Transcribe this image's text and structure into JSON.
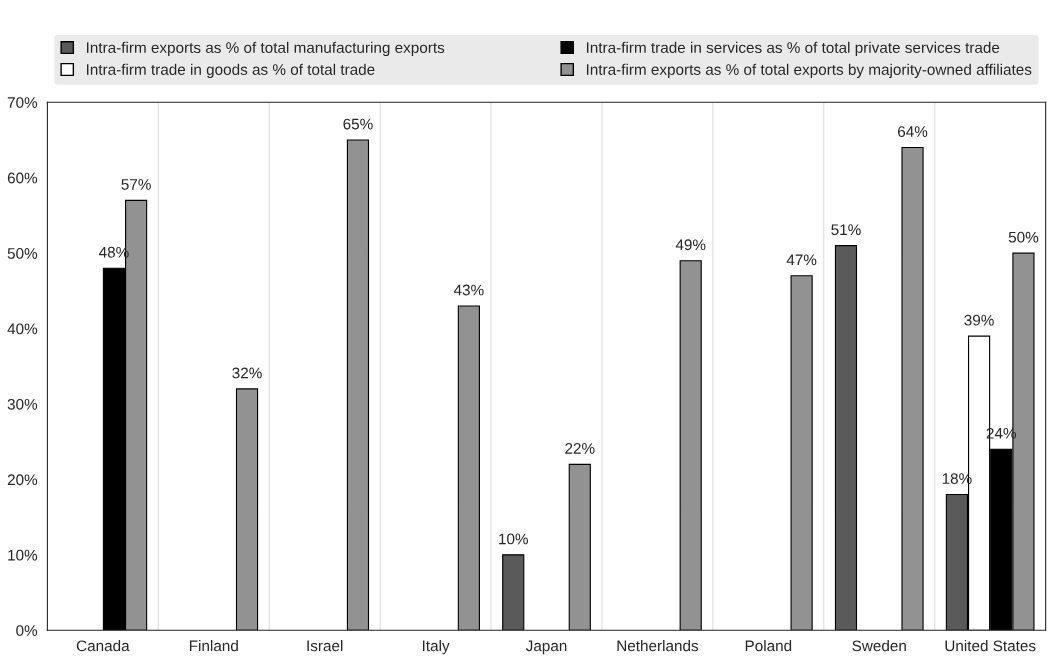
{
  "chart_data": {
    "type": "bar",
    "categories": [
      "Canada",
      "Finland",
      "Israel",
      "Italy",
      "Japan",
      "Netherlands",
      "Poland",
      "Sweden",
      "United States"
    ],
    "series": [
      {
        "name": "Intra-firm exports as % of total manufacturing exports",
        "color": "#5a5a5a",
        "values": [
          null,
          null,
          null,
          null,
          10,
          null,
          null,
          51,
          18
        ],
        "value_labels": [
          null,
          null,
          null,
          null,
          "10%",
          null,
          null,
          "51%",
          "18%"
        ]
      },
      {
        "name": "Intra-firm trade in goods as % of total trade",
        "color": "#ffffff",
        "values": [
          null,
          null,
          null,
          null,
          null,
          null,
          null,
          null,
          39
        ],
        "value_labels": [
          null,
          null,
          null,
          null,
          null,
          null,
          null,
          null,
          "39%"
        ]
      },
      {
        "name": "Intra-firm trade in services as % of total private services trade",
        "color": "#000000",
        "values": [
          48,
          null,
          null,
          null,
          null,
          null,
          null,
          null,
          24
        ],
        "value_labels": [
          "48%",
          null,
          null,
          null,
          null,
          null,
          null,
          null,
          "24%"
        ]
      },
      {
        "name": "Intra-firm exports as % of total exports by majority-owned affiliates",
        "color": "#929292",
        "values": [
          57,
          32,
          65,
          43,
          22,
          49,
          47,
          64,
          50
        ],
        "value_labels": [
          "57%",
          "32%",
          "65%",
          "43%",
          "22%",
          "49%",
          "47%",
          "64%",
          "50%"
        ]
      }
    ],
    "ylim": [
      0,
      70
    ],
    "yticks": [
      {
        "value": 0,
        "label": "0%"
      },
      {
        "value": 10,
        "label": "10%"
      },
      {
        "value": 20,
        "label": "20%"
      },
      {
        "value": 30,
        "label": "30%"
      },
      {
        "value": 40,
        "label": "40%"
      },
      {
        "value": 50,
        "label": "50%"
      },
      {
        "value": 60,
        "label": "60%"
      },
      {
        "value": 70,
        "label": "70%"
      }
    ],
    "grid": false,
    "legend": "top"
  }
}
